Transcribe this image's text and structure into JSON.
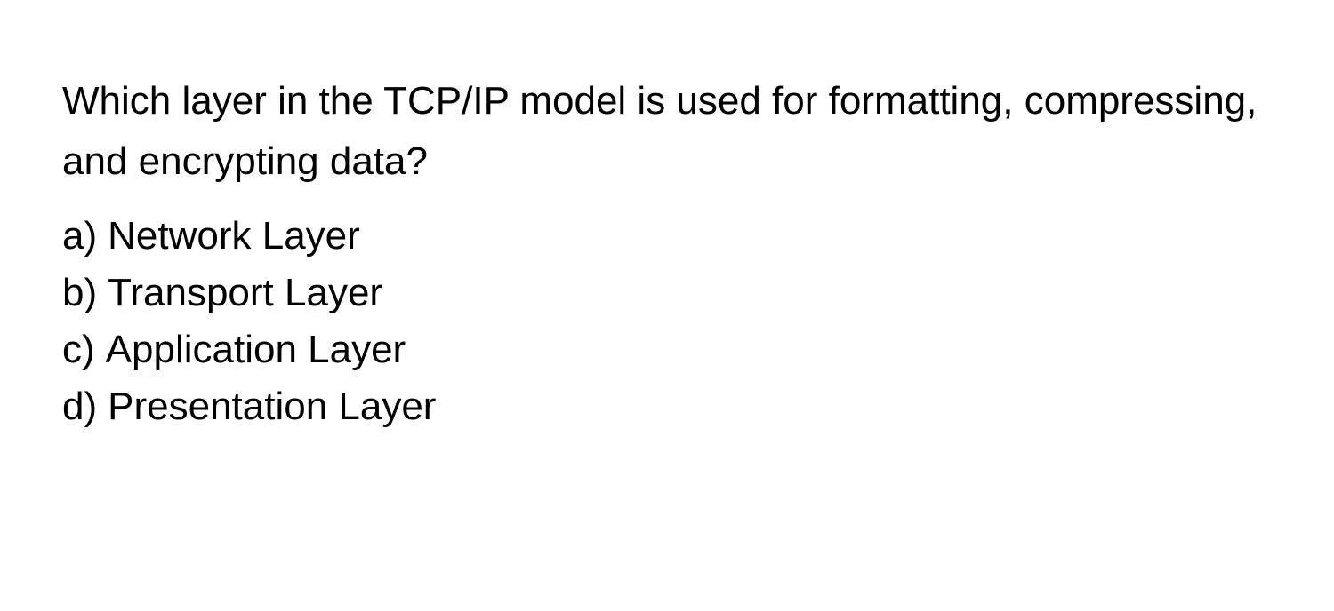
{
  "question": {
    "text": "Which layer in the TCP/IP model is used for formatting, compressing, and encrypting data?",
    "text_color": "#000000",
    "font_size": 44,
    "font_weight": 400,
    "background_color": "#ffffff"
  },
  "options": [
    {
      "label": "a)",
      "text": "Network Layer"
    },
    {
      "label": "b)",
      "text": "Transport Layer"
    },
    {
      "label": "c)",
      "text": "Application Layer"
    },
    {
      "label": "d)",
      "text": "Presentation Layer"
    }
  ]
}
